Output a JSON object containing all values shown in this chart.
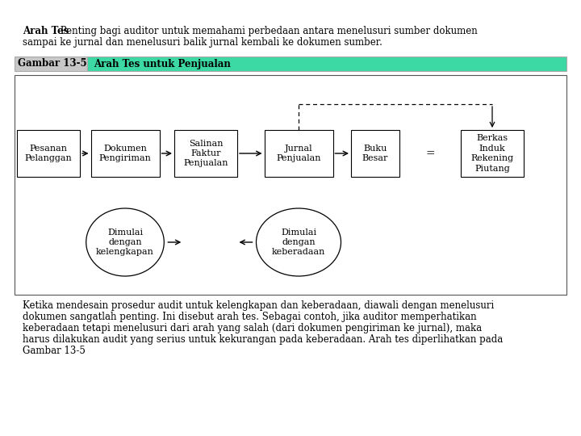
{
  "title_bold": "Arah Tes",
  "title_normal": " Penting bagi auditor untuk memahami perbedaan antara menelusuri sumber dokumen",
  "title_line2": "sampai ke jurnal dan menelusuri balik jurnal kembali ke dokumen sumber.",
  "figure_label": "Gambar 13-5",
  "figure_title": "Arah Tes untuk Penjualan",
  "header_bg": "#3dd9a4",
  "header_label_bg": "#c8c8c8",
  "box_labels": [
    "Pesanan\nPelanggan",
    "Dokumen\nPengiriman",
    "Salinan\nFaktur\nPenjualan",
    "Jurnal\nPenjualan",
    "Buku\nBesar",
    "Berkas\nInduk\nRekening\nPiutang"
  ],
  "ellipse_left": "Dimulai\ndengan\nkelengkapan",
  "ellipse_right": "Dimulai\ndengan\nkeberadaan",
  "bottom_text_line1": "Ketika mendesain prosedur audit untuk kelengkapan dan keberadaan, diawali dengan menelusuri",
  "bottom_text_line2": "dokumen sangatlah penting. Ini disebut arah tes. Sebagai contoh, jika auditor memperhatikan",
  "bottom_text_line3": "keberadaan tetapi menelusuri dari arah yang salah (dari dokumen pengiriman ke jurnal), maka",
  "bottom_text_line4": "harus dilakukan audit yang serius untuk kekurangan pada keberadaan. Arah tes diperlihatkan pada",
  "bottom_text_line5": "Gambar 13-5",
  "bg_color": "#ffffff"
}
